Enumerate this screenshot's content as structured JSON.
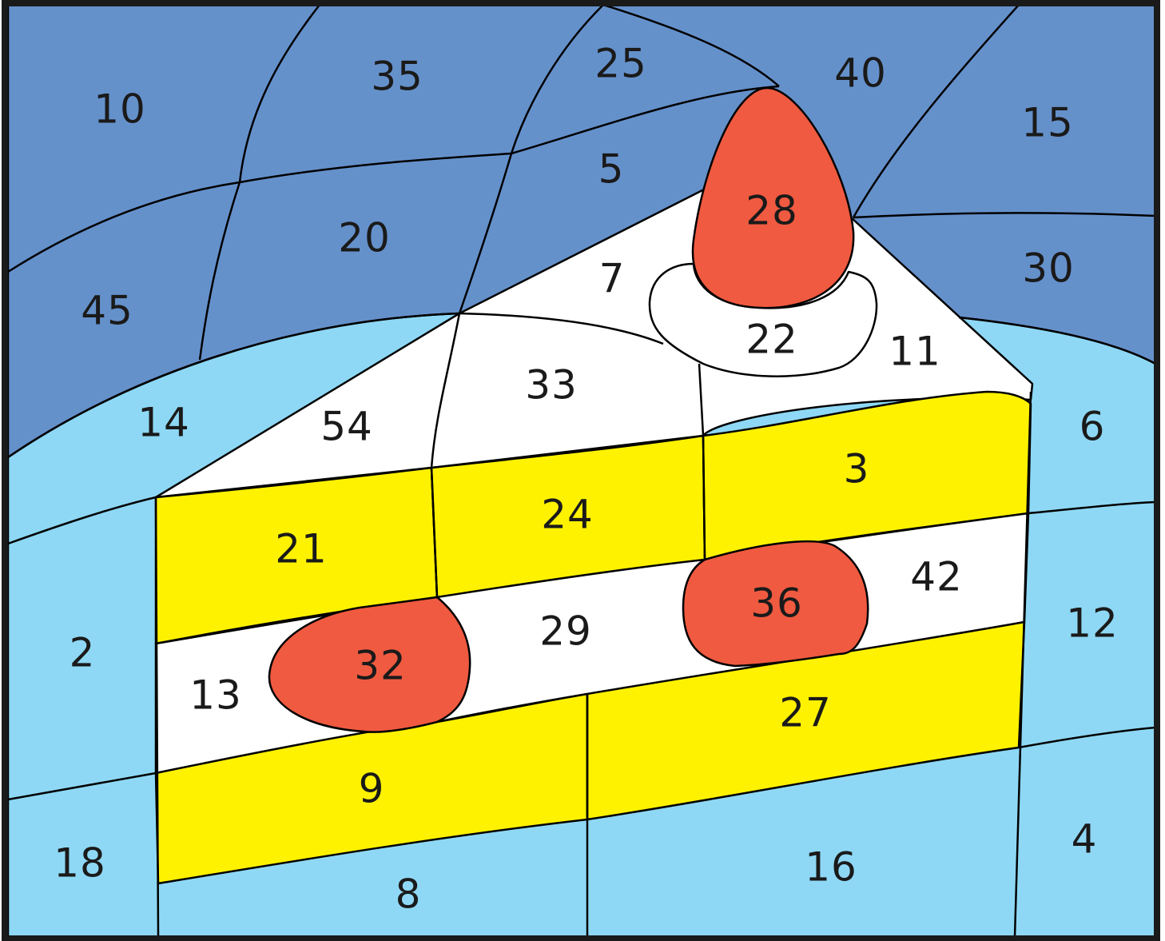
{
  "palette": {
    "dark_blue": "#6591cb",
    "light_blue": "#8ed8f5",
    "white": "#ffffff",
    "yellow": "#fff200",
    "red": "#f05a40",
    "outline": "#000000"
  },
  "numbers": {
    "n10": "10",
    "n35": "35",
    "n25": "25",
    "n40": "40",
    "n15": "15",
    "n5": "5",
    "n20": "20",
    "n28": "28",
    "n45": "45",
    "n30": "30",
    "n7": "7",
    "n22": "22",
    "n11": "11",
    "n33": "33",
    "n14": "14",
    "n54": "54",
    "n6": "6",
    "n3": "3",
    "n24": "24",
    "n21": "21",
    "n42": "42",
    "n36": "36",
    "n29": "29",
    "n12": "12",
    "n2": "2",
    "n32": "32",
    "n13": "13",
    "n27": "27",
    "n9": "9",
    "n18": "18",
    "n16": "16",
    "n4": "4",
    "n8": "8"
  }
}
